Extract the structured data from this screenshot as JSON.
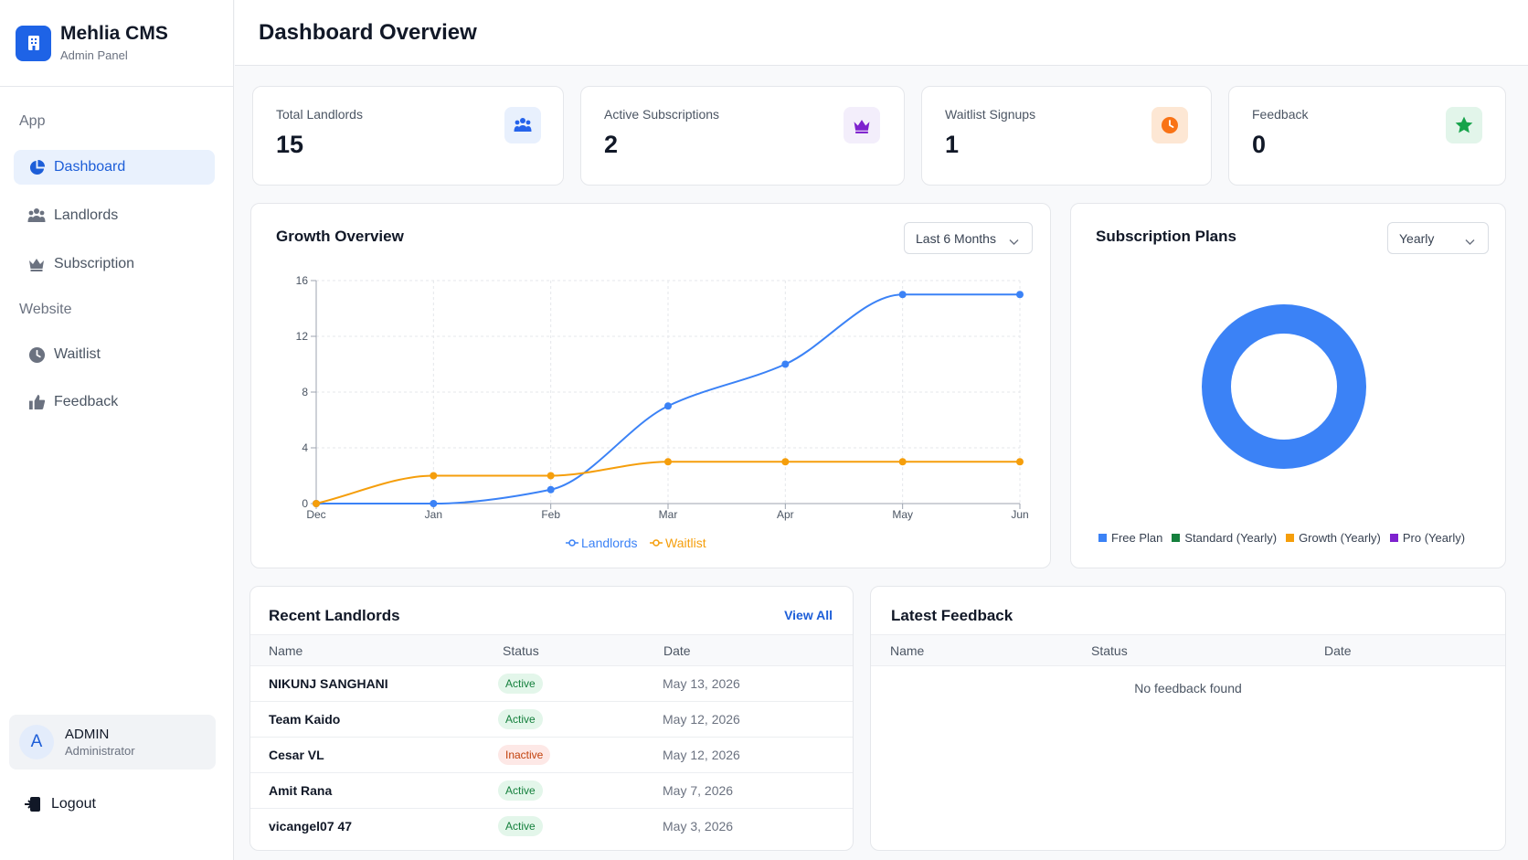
{
  "brand": {
    "title": "Mehlia CMS",
    "subtitle": "Admin Panel"
  },
  "sidebar": {
    "section_app": "App",
    "section_website": "Website",
    "items": [
      {
        "label": "Dashboard",
        "icon": "pie-chart-icon",
        "active": true
      },
      {
        "label": "Landlords",
        "icon": "users-icon"
      },
      {
        "label": "Subscription",
        "icon": "crown-icon"
      },
      {
        "label": "Waitlist",
        "icon": "clock-icon"
      },
      {
        "label": "Feedback",
        "icon": "thumbs-up-icon"
      }
    ],
    "user": {
      "initial": "A",
      "name": "ADMIN",
      "role": "Administrator"
    },
    "logout_label": "Logout"
  },
  "header": {
    "title": "Dashboard Overview"
  },
  "stats": [
    {
      "label": "Total Landlords",
      "value": "15",
      "icon": "users-icon",
      "color": "#2563eb"
    },
    {
      "label": "Active Subscriptions",
      "value": "2",
      "icon": "crown-icon",
      "color": "#7e22ce"
    },
    {
      "label": "Waitlist Signups",
      "value": "1",
      "icon": "clock-icon",
      "color": "#f97316"
    },
    {
      "label": "Feedback",
      "value": "0",
      "icon": "star-icon",
      "color": "#16a34a"
    }
  ],
  "growth": {
    "title": "Growth Overview",
    "range_select": "Last 6 Months"
  },
  "chart_data": [
    {
      "type": "line",
      "title": "",
      "x": [
        "Dec",
        "Jan",
        "Feb",
        "Mar",
        "Apr",
        "May",
        "Jun"
      ],
      "y_ticks": [
        0,
        4,
        8,
        12,
        16
      ],
      "ylim": [
        0,
        16
      ],
      "grid": true,
      "legend": "bottom",
      "series": [
        {
          "name": "Landlords",
          "color": "#3b82f6",
          "values": [
            0,
            0,
            1,
            7,
            10,
            15,
            15
          ]
        },
        {
          "name": "Waitlist",
          "color": "#f59e0b",
          "values": [
            0,
            2,
            2,
            3,
            3,
            3,
            3
          ]
        }
      ]
    },
    {
      "type": "pie",
      "title": "",
      "legend": "bottom",
      "slices": [
        {
          "name": "Free Plan",
          "value": 100,
          "color": "#3b82f6"
        },
        {
          "name": "Standard (Yearly)",
          "value": 0,
          "color": "#15803d"
        },
        {
          "name": "Growth (Yearly)",
          "value": 0,
          "color": "#f59e0b"
        },
        {
          "name": "Pro (Yearly)",
          "value": 0,
          "color": "#7e22ce"
        }
      ]
    }
  ],
  "plans": {
    "title": "Subscription Plans",
    "period_select": "Yearly",
    "legend": [
      "Free Plan",
      "Standard (Yearly)",
      "Growth (Yearly)",
      "Pro (Yearly)"
    ]
  },
  "recent_landlords": {
    "title": "Recent Landlords",
    "view_all": "View All",
    "columns": [
      "Name",
      "Status",
      "Date"
    ],
    "rows": [
      {
        "name": "NIKUNJ SANGHANI",
        "status": "Active",
        "date": "May 13, 2026"
      },
      {
        "name": "Team Kaido",
        "status": "Active",
        "date": "May 12, 2026"
      },
      {
        "name": "Cesar VL",
        "status": "Inactive",
        "date": "May 12, 2026"
      },
      {
        "name": "Amit Rana",
        "status": "Active",
        "date": "May 7, 2026"
      },
      {
        "name": "vicangel07 47",
        "status": "Active",
        "date": "May 3, 2026"
      }
    ]
  },
  "latest_feedback": {
    "title": "Latest Feedback",
    "columns": [
      "Name",
      "Status",
      "Date"
    ],
    "empty": "No feedback found"
  }
}
